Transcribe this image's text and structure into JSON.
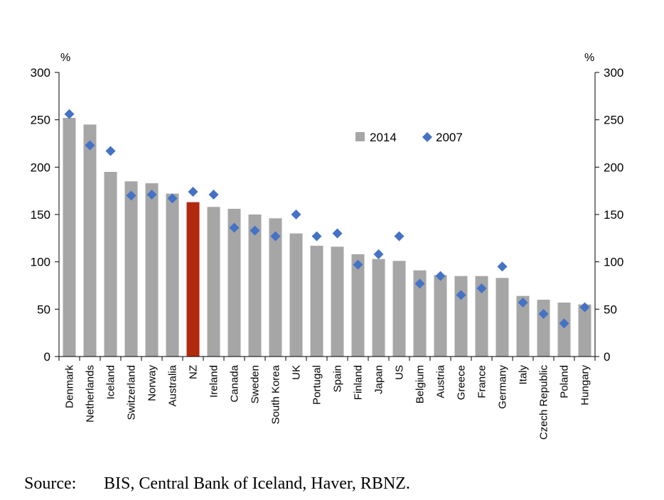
{
  "chart_data": {
    "type": "bar",
    "categories": [
      "Denmark",
      "Netherlands",
      "Iceland",
      "Switzerland",
      "Norway",
      "Australia",
      "NZ",
      "Ireland",
      "Canada",
      "Sweden",
      "South Korea",
      "UK",
      "Portugal",
      "Spain",
      "Finland",
      "Japan",
      "US",
      "Belgium",
      "Austria",
      "Greece",
      "France",
      "Germany",
      "Italy",
      "Czech Republic",
      "Poland",
      "Hungary"
    ],
    "series": [
      {
        "name": "2014",
        "kind": "bar",
        "color": "#a6a6a6",
        "highlight": {
          "category": "NZ",
          "color": "#b22a0e"
        },
        "values": [
          252,
          245,
          195,
          185,
          183,
          172,
          163,
          158,
          156,
          150,
          146,
          130,
          117,
          116,
          108,
          103,
          101,
          91,
          86,
          85,
          85,
          83,
          64,
          60,
          57,
          55
        ]
      },
      {
        "name": "2007",
        "kind": "marker",
        "marker": "diamond",
        "color": "#4472c4",
        "values": [
          256,
          223,
          217,
          170,
          171,
          167,
          174,
          171,
          136,
          133,
          127,
          150,
          127,
          130,
          97,
          108,
          127,
          77,
          85,
          65,
          72,
          95,
          57,
          45,
          35,
          52
        ]
      }
    ],
    "ylim": [
      0,
      300
    ],
    "yticks": [
      0,
      50,
      100,
      150,
      200,
      250,
      300
    ],
    "ylabel_left": "%",
    "ylabel_right": "%",
    "legend_position": "top-right",
    "grid": false
  },
  "source": {
    "label": "Source:",
    "text": "BIS, Central Bank of Iceland, Haver, RBNZ."
  }
}
